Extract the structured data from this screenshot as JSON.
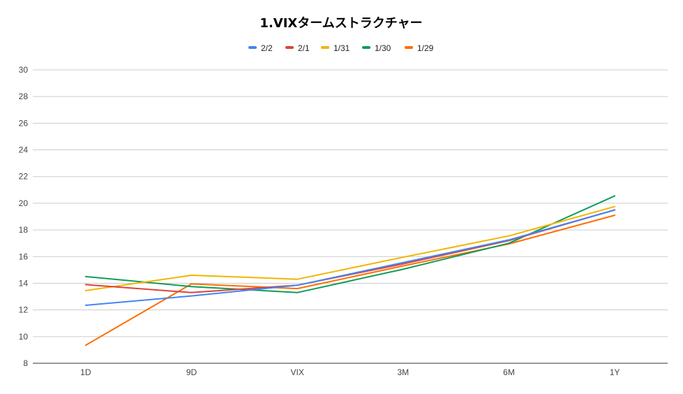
{
  "chart_data": {
    "type": "line",
    "title": "1.VIXタームストラクチャー",
    "xlabel": "",
    "ylabel": "",
    "categories": [
      "1D",
      "9D",
      "VIX",
      "3M",
      "6M",
      "1Y"
    ],
    "ylim": [
      8,
      30
    ],
    "yticks": [
      8,
      10,
      12,
      14,
      16,
      18,
      20,
      22,
      24,
      26,
      28,
      30
    ],
    "grid": true,
    "legend_position": "top-center",
    "series": [
      {
        "name": "2/2",
        "color": "#4285f4",
        "values": [
          12.35,
          13.05,
          13.85,
          15.55,
          17.25,
          19.5
        ]
      },
      {
        "name": "2/1",
        "color": "#db4437",
        "values": [
          13.9,
          13.3,
          13.85,
          15.45,
          17.2,
          19.5
        ]
      },
      {
        "name": "1/31",
        "color": "#f4b400",
        "values": [
          13.45,
          14.6,
          14.3,
          15.95,
          17.55,
          19.75
        ]
      },
      {
        "name": "1/30",
        "color": "#0f9d58",
        "values": [
          14.5,
          13.75,
          13.3,
          15.05,
          17.0,
          20.55
        ]
      },
      {
        "name": "1/29",
        "color": "#ff6d01",
        "values": [
          9.35,
          13.95,
          13.6,
          15.3,
          16.95,
          19.1
        ]
      }
    ]
  }
}
